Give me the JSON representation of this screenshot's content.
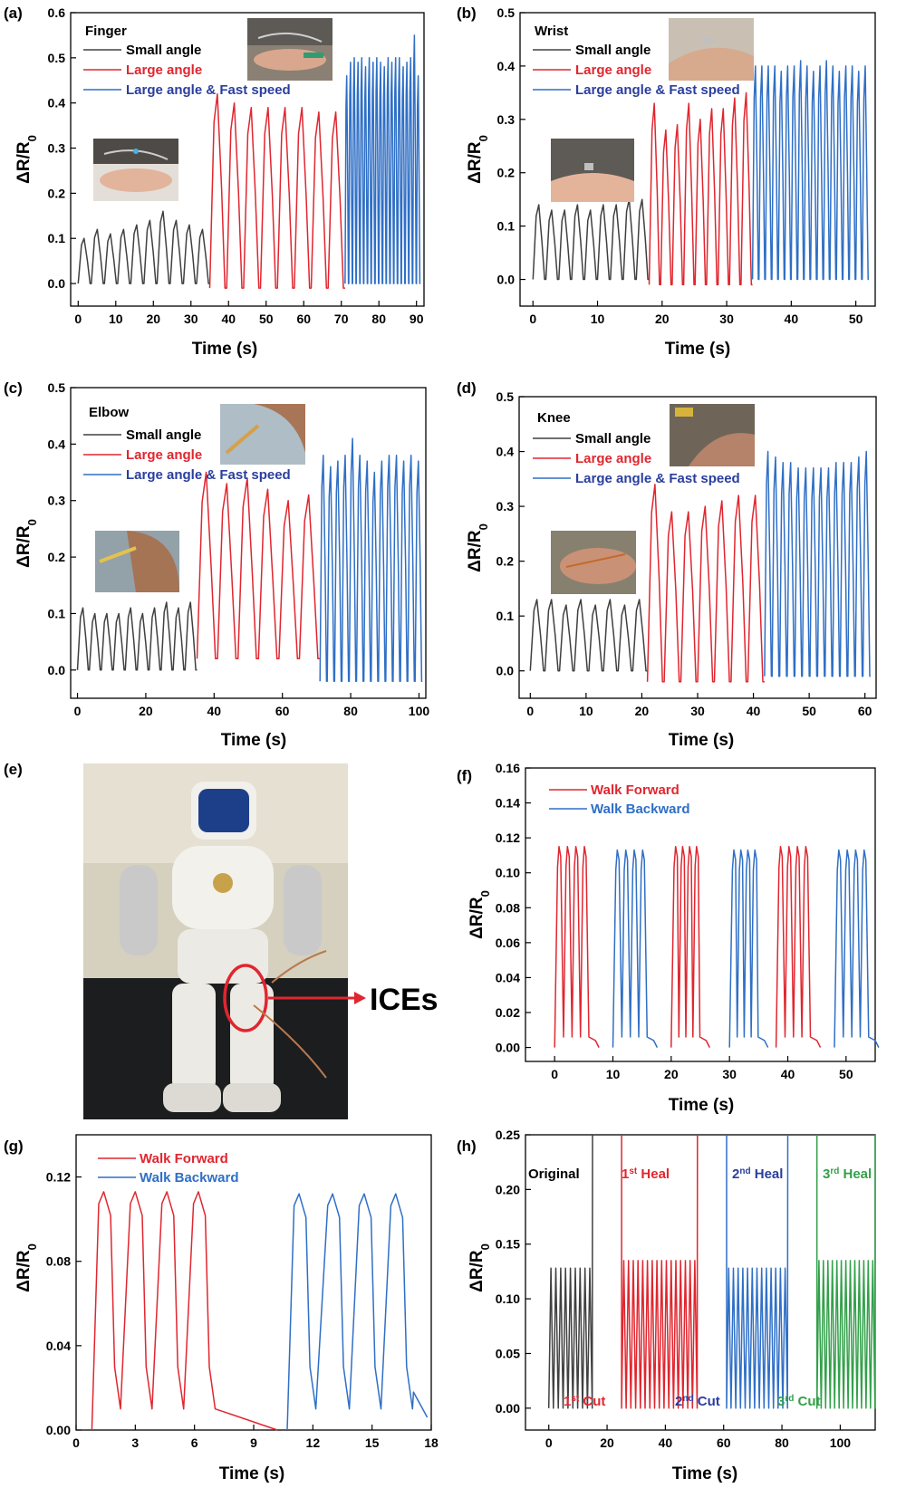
{
  "colors": {
    "small": "#404040",
    "large": "#e0262f",
    "fast": "#2f6fc6",
    "green": "#33a04a",
    "text_blue": "#2a3e9e"
  },
  "panels": {
    "a": {
      "label": "(a)",
      "title": "Finger"
    },
    "b": {
      "label": "(b)",
      "title": "Wrist"
    },
    "c": {
      "label": "(c)",
      "title": "Elbow"
    },
    "d": {
      "label": "(d)",
      "title": "Knee"
    },
    "e": {
      "label": "(e)",
      "ices_label": "ICEs"
    },
    "f": {
      "label": "(f)"
    },
    "g": {
      "label": "(g)"
    },
    "h": {
      "label": "(h)"
    }
  },
  "legend": {
    "small": "Small angle",
    "large": "Large angle",
    "fast": "Large angle & Fast speed",
    "forward": "Walk Forward",
    "backward": "Walk Backward"
  },
  "axis_text": {
    "time": "Time (s)",
    "ylabel_main": "ΔR/R",
    "ylabel_sub": "0"
  },
  "h_annotations": {
    "original": "Original",
    "heal1": "1",
    "heal1_sup": "st",
    "heal1_word": " Heal",
    "heal2": "2",
    "heal2_sup": "nd",
    "heal2_word": " Heal",
    "heal3": "3",
    "heal3_sup": "rd",
    "heal3_word": " Heal",
    "cut1": "1",
    "cut1_sup": "st",
    "cut1_word": " Cut",
    "cut2": "2",
    "cut2_sup": "nd",
    "cut2_word": " Cut",
    "cut3": "3",
    "cut3_sup": "rd",
    "cut3_word": " Cut"
  },
  "chart_data": [
    {
      "panel": "a",
      "type": "line",
      "title": "Finger",
      "xlabel": "Time (s)",
      "ylabel": "ΔR/R0",
      "xlim": [
        -2,
        92
      ],
      "ylim": [
        -0.05,
        0.6
      ],
      "xticks": [
        0,
        10,
        20,
        30,
        40,
        50,
        60,
        70,
        80,
        90
      ],
      "yticks": [
        0.0,
        0.1,
        0.2,
        0.3,
        0.4,
        0.5,
        0.6
      ],
      "series": [
        {
          "name": "Small angle",
          "x_range": [
            0,
            35
          ],
          "peaks": [
            0.1,
            0.12,
            0.11,
            0.12,
            0.13,
            0.14,
            0.16,
            0.14,
            0.13,
            0.12
          ],
          "baseline": 0.0
        },
        {
          "name": "Large angle",
          "x_range": [
            35,
            71
          ],
          "peaks": [
            0.42,
            0.4,
            0.39,
            0.39,
            0.39,
            0.39,
            0.38,
            0.38
          ],
          "baseline": -0.01
        },
        {
          "name": "Large angle & Fast speed",
          "x_range": [
            71,
            91
          ],
          "peaks": [
            0.46,
            0.49,
            0.5,
            0.49,
            0.5,
            0.48,
            0.5,
            0.49,
            0.5,
            0.49,
            0.48,
            0.5,
            0.49,
            0.5,
            0.5,
            0.48,
            0.49,
            0.5,
            0.55,
            0.46
          ],
          "baseline": 0.0
        }
      ]
    },
    {
      "panel": "b",
      "type": "line",
      "title": "Wrist",
      "xlabel": "Time (s)",
      "ylabel": "ΔR/R0",
      "xlim": [
        -2,
        53
      ],
      "ylim": [
        -0.05,
        0.5
      ],
      "xticks": [
        0,
        10,
        20,
        30,
        40,
        50
      ],
      "yticks": [
        0.0,
        0.1,
        0.2,
        0.3,
        0.4,
        0.5
      ],
      "series": [
        {
          "name": "Small angle",
          "x_range": [
            0,
            18
          ],
          "peaks": [
            0.14,
            0.13,
            0.13,
            0.14,
            0.13,
            0.14,
            0.14,
            0.15,
            0.15
          ],
          "baseline": 0.0
        },
        {
          "name": "Large angle",
          "x_range": [
            18,
            34
          ],
          "peaks": [
            0.33,
            0.28,
            0.29,
            0.33,
            0.3,
            0.32,
            0.32,
            0.34,
            0.35
          ],
          "baseline": -0.01
        },
        {
          "name": "Large angle & Fast speed",
          "x_range": [
            34,
            52
          ],
          "peaks": [
            0.4,
            0.4,
            0.4,
            0.4,
            0.39,
            0.4,
            0.4,
            0.41,
            0.4,
            0.39,
            0.4,
            0.41,
            0.4,
            0.39,
            0.4,
            0.4,
            0.39,
            0.4
          ],
          "baseline": 0.0
        }
      ]
    },
    {
      "panel": "c",
      "type": "line",
      "title": "Elbow",
      "xlabel": "Time (s)",
      "ylabel": "ΔR/R0",
      "xlim": [
        -2,
        102
      ],
      "ylim": [
        -0.05,
        0.5
      ],
      "xticks": [
        0,
        20,
        40,
        60,
        80,
        100
      ],
      "yticks": [
        0.0,
        0.1,
        0.2,
        0.3,
        0.4,
        0.5
      ],
      "series": [
        {
          "name": "Small angle",
          "x_range": [
            0,
            35
          ],
          "peaks": [
            0.11,
            0.1,
            0.1,
            0.1,
            0.11,
            0.1,
            0.11,
            0.12,
            0.11,
            0.12
          ],
          "baseline": 0.0
        },
        {
          "name": "Large angle",
          "x_range": [
            35,
            71
          ],
          "peaks": [
            0.35,
            0.33,
            0.34,
            0.32,
            0.3,
            0.31
          ],
          "baseline": 0.02
        },
        {
          "name": "Large angle & Fast speed",
          "x_range": [
            71,
            101
          ],
          "peaks": [
            0.38,
            0.36,
            0.37,
            0.38,
            0.41,
            0.38,
            0.37,
            0.35,
            0.37,
            0.38,
            0.38,
            0.37,
            0.38,
            0.37
          ],
          "baseline": -0.02
        }
      ]
    },
    {
      "panel": "d",
      "type": "line",
      "title": "Knee",
      "xlabel": "Time (s)",
      "ylabel": "ΔR/R0",
      "xlim": [
        -2,
        62
      ],
      "ylim": [
        -0.05,
        0.5
      ],
      "xticks": [
        0,
        10,
        20,
        30,
        40,
        50,
        60
      ],
      "yticks": [
        0.0,
        0.1,
        0.2,
        0.3,
        0.4,
        0.5
      ],
      "series": [
        {
          "name": "Small angle",
          "x_range": [
            0,
            21
          ],
          "peaks": [
            0.13,
            0.13,
            0.12,
            0.13,
            0.12,
            0.13,
            0.12,
            0.13
          ],
          "baseline": 0.0
        },
        {
          "name": "Large angle",
          "x_range": [
            21,
            42
          ],
          "peaks": [
            0.34,
            0.29,
            0.29,
            0.3,
            0.31,
            0.32,
            0.32
          ],
          "baseline": -0.02
        },
        {
          "name": "Large angle & Fast speed",
          "x_range": [
            42,
            61
          ],
          "peaks": [
            0.4,
            0.39,
            0.38,
            0.38,
            0.37,
            0.37,
            0.37,
            0.37,
            0.37,
            0.38,
            0.38,
            0.38,
            0.39,
            0.4
          ],
          "baseline": -0.01
        }
      ]
    },
    {
      "panel": "f",
      "type": "line",
      "xlabel": "Time (s)",
      "ylabel": "ΔR/R0",
      "xlim": [
        -5,
        55
      ],
      "ylim": [
        -0.008,
        0.16
      ],
      "xticks": [
        0,
        10,
        20,
        30,
        40,
        50
      ],
      "yticks": [
        0.0,
        0.02,
        0.04,
        0.06,
        0.08,
        0.1,
        0.12,
        0.14,
        0.16
      ],
      "series": [
        {
          "name": "Walk Forward",
          "segments": [
            [
              0,
              7
            ],
            [
              20,
              26
            ],
            [
              38,
              45
            ]
          ],
          "peak": 0.115
        },
        {
          "name": "Walk Backward",
          "segments": [
            [
              10,
              17
            ],
            [
              30,
              36
            ],
            [
              48,
              55
            ]
          ],
          "peak": 0.113
        }
      ]
    },
    {
      "panel": "g",
      "type": "line",
      "xlabel": "Time (s)",
      "ylabel": "ΔR/R0",
      "xlim": [
        0,
        18
      ],
      "ylim": [
        0,
        0.14
      ],
      "xticks": [
        0,
        3,
        6,
        9,
        12,
        15,
        18
      ],
      "yticks": [
        0.0,
        0.04,
        0.08,
        0.12
      ],
      "series": [
        {
          "name": "Walk Forward",
          "peaks_x": [
            1.4,
            3.0,
            4.6,
            6.2
          ],
          "peak": 0.113
        },
        {
          "name": "Walk Backward",
          "peaks_x": [
            11.3,
            13.0,
            14.6,
            16.2
          ],
          "peak": 0.112
        }
      ]
    },
    {
      "panel": "h",
      "type": "line",
      "xlabel": "Time (s)",
      "ylabel": "ΔR/R0",
      "xlim": [
        -8,
        112
      ],
      "ylim": [
        -0.02,
        0.25
      ],
      "xticks": [
        0,
        20,
        40,
        60,
        80,
        100
      ],
      "yticks": [
        0.0,
        0.05,
        0.1,
        0.15,
        0.2,
        0.25
      ],
      "series": [
        {
          "name": "Original",
          "x_range": [
            0,
            15
          ],
          "peak": 0.128
        },
        {
          "name": "1st Heal",
          "x_range": [
            25,
            51
          ],
          "peak": 0.135
        },
        {
          "name": "2nd Heal",
          "x_range": [
            61,
            82
          ],
          "peak": 0.128
        },
        {
          "name": "3rd Heal",
          "x_range": [
            92,
            112
          ],
          "peak": 0.135
        }
      ]
    }
  ]
}
